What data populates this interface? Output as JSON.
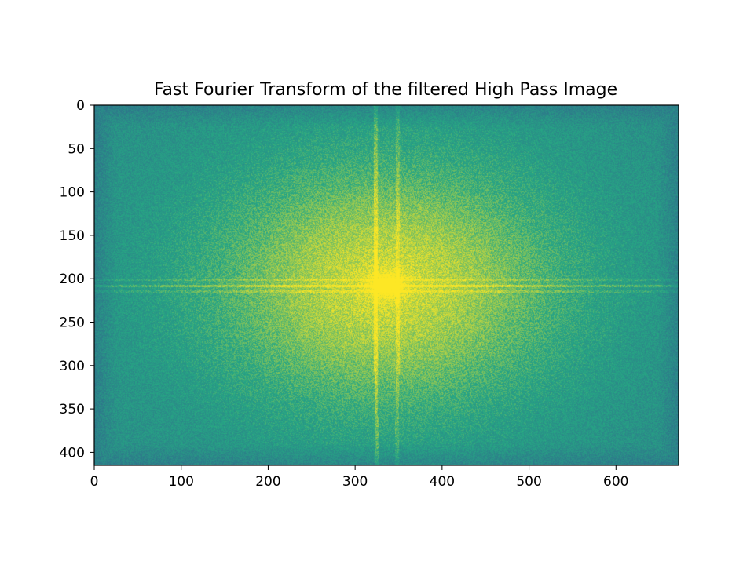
{
  "chart_data": {
    "type": "heatmap",
    "title": "Fast Fourier Transform of the filtered High Pass Image",
    "xlabel": "",
    "ylabel": "",
    "image_width": 672,
    "image_height": 415,
    "xlim": [
      0,
      672
    ],
    "ylim": [
      415,
      0
    ],
    "y_inverted": true,
    "colormap": "viridis",
    "grid": false,
    "x_ticks": [
      0,
      100,
      200,
      300,
      400,
      500,
      600
    ],
    "y_ticks": [
      0,
      50,
      100,
      150,
      200,
      250,
      300,
      350,
      400
    ],
    "spectrum_center": [
      336,
      207
    ],
    "features": {
      "bright_center": [
        336,
        207
      ],
      "horizontal_streak_y": [
        201,
        208,
        214
      ],
      "near_vertical_streak_top_x": [
        323,
        349
      ],
      "near_vertical_streak_bottom_x": [
        324,
        348
      ],
      "colors": {
        "low": "#31668d",
        "mid": "#26a784",
        "high": "#fde725"
      }
    }
  }
}
